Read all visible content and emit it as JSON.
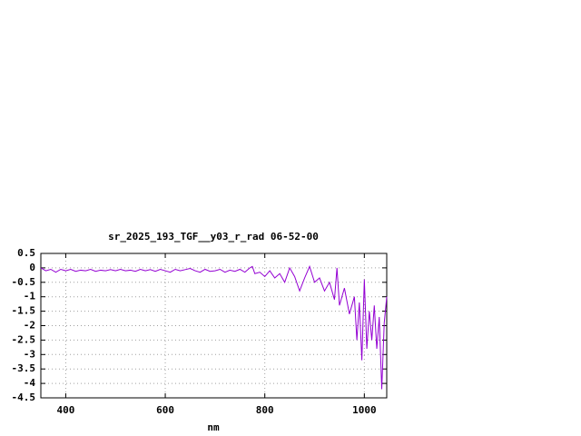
{
  "chart_data": {
    "type": "line",
    "title": "sr_2025_193_TGF__y03_r_rad 06-52-00",
    "xlabel": "nm",
    "x": [
      350,
      360,
      370,
      380,
      390,
      400,
      410,
      420,
      430,
      440,
      450,
      460,
      470,
      480,
      490,
      500,
      510,
      520,
      530,
      540,
      550,
      560,
      570,
      580,
      590,
      600,
      610,
      620,
      630,
      640,
      650,
      660,
      670,
      680,
      690,
      700,
      710,
      720,
      730,
      740,
      750,
      760,
      770,
      775,
      780,
      790,
      800,
      810,
      820,
      830,
      840,
      850,
      860,
      870,
      880,
      890,
      900,
      910,
      920,
      930,
      940,
      945,
      950,
      960,
      970,
      980,
      985,
      990,
      995,
      1000,
      1005,
      1010,
      1015,
      1020,
      1025,
      1030,
      1035,
      1040,
      1045
    ],
    "series": [
      {
        "color": "#9400d3",
        "values": [
          0.0,
          -0.1,
          -0.05,
          -0.15,
          -0.05,
          -0.1,
          -0.05,
          -0.12,
          -0.08,
          -0.1,
          -0.05,
          -0.12,
          -0.08,
          -0.1,
          -0.06,
          -0.1,
          -0.05,
          -0.1,
          -0.08,
          -0.12,
          -0.05,
          -0.1,
          -0.06,
          -0.12,
          -0.05,
          -0.1,
          -0.15,
          -0.05,
          -0.1,
          -0.06,
          -0.02,
          -0.1,
          -0.15,
          -0.05,
          -0.12,
          -0.1,
          -0.05,
          -0.15,
          -0.08,
          -0.12,
          -0.05,
          -0.15,
          0.0,
          0.05,
          -0.2,
          -0.15,
          -0.3,
          -0.1,
          -0.35,
          -0.2,
          -0.5,
          0.0,
          -0.3,
          -0.8,
          -0.35,
          0.05,
          -0.5,
          -0.35,
          -0.8,
          -0.5,
          -1.1,
          0.0,
          -1.3,
          -0.7,
          -1.6,
          -1.0,
          -2.5,
          -1.2,
          -3.2,
          -0.4,
          -2.8,
          -1.5,
          -2.5,
          -1.3,
          -2.8,
          -1.7,
          -4.2,
          -1.9,
          -1.0
        ]
      }
    ],
    "xlim": [
      350,
      1045
    ],
    "ylim": [
      -4.5,
      0.5
    ],
    "xticks": [
      400,
      600,
      800,
      1000
    ],
    "yticks": [
      0.5,
      0,
      -0.5,
      -1,
      -1.5,
      -2,
      -2.5,
      -3,
      -3.5,
      -4,
      -4.5
    ],
    "grid": true
  }
}
